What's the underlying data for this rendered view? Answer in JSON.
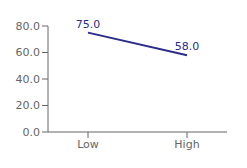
{
  "chart_data": {
    "type": "line",
    "categories": [
      "Low",
      "High"
    ],
    "values": [
      75.0,
      58.0
    ],
    "value_labels": [
      "75.0",
      "58.0"
    ],
    "data_labels": true,
    "color": "#2b2b8c",
    "ylim": [
      0,
      80
    ],
    "yticks": [
      {
        "value": 0,
        "label": "0.0"
      },
      {
        "value": 20,
        "label": "20.0"
      },
      {
        "value": 40,
        "label": "40.0"
      },
      {
        "value": 60,
        "label": "60.0"
      },
      {
        "value": 80,
        "label": "80.0"
      }
    ],
    "grid": false
  }
}
